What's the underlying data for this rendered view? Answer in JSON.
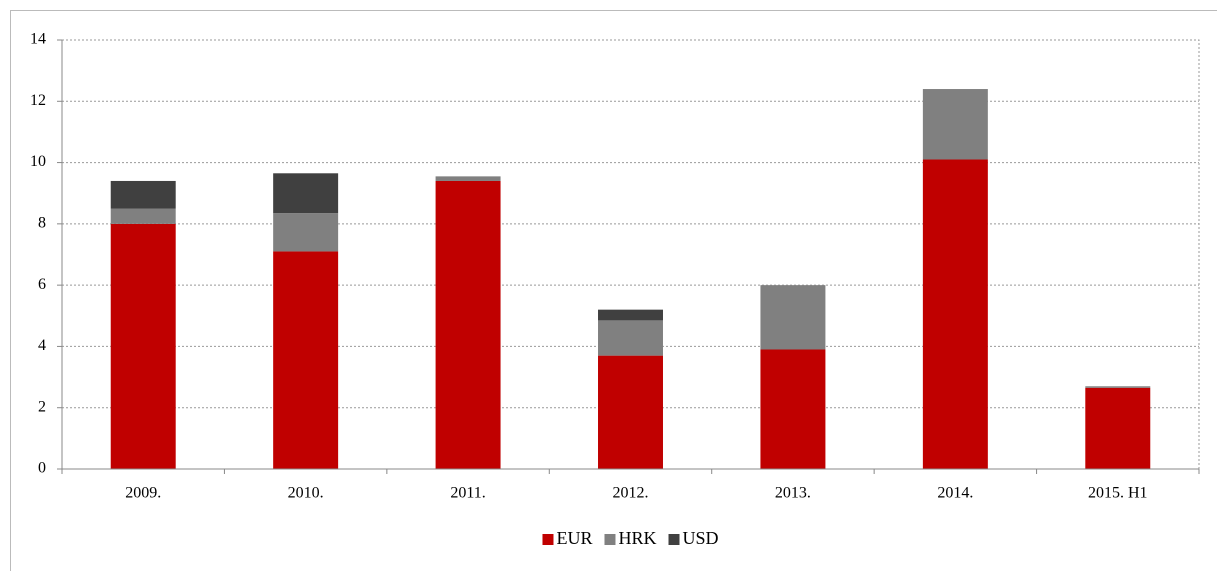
{
  "chart_data": {
    "type": "bar",
    "stacked": true,
    "categories": [
      "2009.",
      "2010.",
      "2011.",
      "2012.",
      "2013.",
      "2014.",
      "2015. H1"
    ],
    "series": [
      {
        "name": "EUR",
        "color": "#c00000",
        "values": [
          8.0,
          7.1,
          9.4,
          3.7,
          3.9,
          10.1,
          2.65
        ]
      },
      {
        "name": "HRK",
        "color": "#808080",
        "values": [
          0.5,
          1.25,
          0.15,
          1.15,
          2.1,
          2.3,
          0.05
        ]
      },
      {
        "name": "USD",
        "color": "#404040",
        "values": [
          0.9,
          1.3,
          0,
          0.35,
          0,
          0,
          0
        ]
      }
    ],
    "ylim": [
      0,
      14
    ],
    "yticks": [
      0,
      2,
      4,
      6,
      8,
      10,
      12,
      14
    ],
    "grid": true,
    "legend": "bottom"
  }
}
